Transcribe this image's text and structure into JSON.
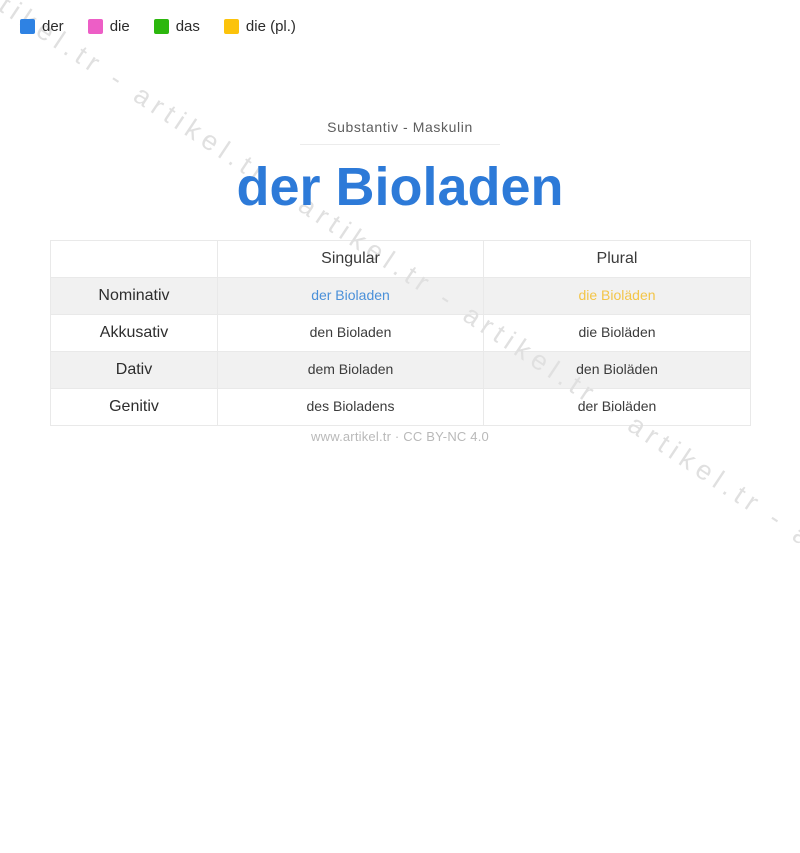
{
  "legend": {
    "items": [
      {
        "label": "der",
        "color": "#2e82e3"
      },
      {
        "label": "die",
        "color": "#ed5ec6"
      },
      {
        "label": "das",
        "color": "#2cb70d"
      },
      {
        "label": "die (pl.)",
        "color": "#fcc30b"
      }
    ]
  },
  "header": {
    "subtitle": "Substantiv - Maskulin",
    "title": "der Bioladen",
    "title_color": "#2d7ad8"
  },
  "table": {
    "columns": [
      "",
      "Singular",
      "Plural"
    ],
    "rows": [
      {
        "case": "Nominativ",
        "singular": "der Bioladen",
        "singular_color": "#4a90d9",
        "plural": "die Bioläden",
        "plural_color": "#f3c548"
      },
      {
        "case": "Akkusativ",
        "singular": "den Bioladen",
        "plural": "die Bioläden"
      },
      {
        "case": "Dativ",
        "singular": "dem Bioladen",
        "plural": "den Bioläden"
      },
      {
        "case": "Genitiv",
        "singular": "des Bioladens",
        "plural": "der Bioläden"
      }
    ]
  },
  "footer": {
    "text": "www.artikel.tr · CC BY-NC 4.0"
  },
  "watermark": {
    "text": "artikel.tr - artikel.tr - artikel.tr - artikel.tr - artikel.tr - artikel.tr - artikel.tr - artikel.tr"
  }
}
